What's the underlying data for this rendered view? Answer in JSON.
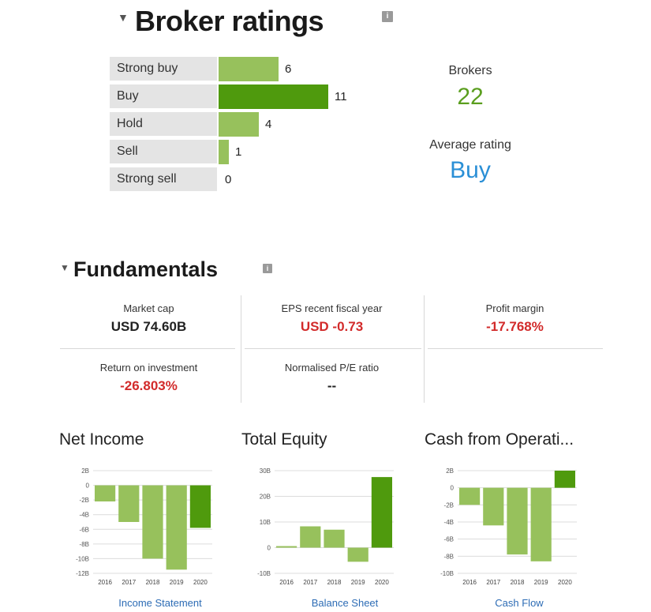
{
  "broker": {
    "title": "Broker ratings",
    "info": "i",
    "ratings": [
      {
        "label": "Strong buy",
        "count": 6
      },
      {
        "label": "Buy",
        "count": 11
      },
      {
        "label": "Hold",
        "count": 4
      },
      {
        "label": "Sell",
        "count": 1
      },
      {
        "label": "Strong sell",
        "count": 0
      }
    ],
    "brokers_label": "Brokers",
    "brokers_value": "22",
    "avg_label": "Average rating",
    "avg_value": "Buy"
  },
  "fundamentals": {
    "title": "Fundamentals",
    "info": "i",
    "cells": [
      {
        "label": "Market cap",
        "value": "USD 74.60B",
        "color": "#222222"
      },
      {
        "label": "EPS recent fiscal year",
        "value": "USD -0.73",
        "color": "#d22a2a"
      },
      {
        "label": "Profit margin",
        "value": "-17.768%",
        "color": "#d22a2a"
      },
      {
        "label": "Return on investment",
        "value": "-26.803%",
        "color": "#d22a2a"
      },
      {
        "label": "Normalised P/E ratio",
        "value": "--",
        "color": "#222222"
      }
    ]
  },
  "colors": {
    "bar_light": "#97c15c",
    "bar_dark": "#4f9a0d",
    "accent_green": "#5a9e1e",
    "accent_blue": "#2a8fd6",
    "negative": "#d22a2a"
  },
  "chart_data": [
    {
      "type": "bar",
      "title": "Net Income",
      "categories": [
        "2016",
        "2017",
        "2018",
        "2019",
        "2020"
      ],
      "values": [
        -2.2,
        -5.0,
        -10.0,
        -11.5,
        -5.8
      ],
      "unit": "B",
      "yticks": [
        "2B",
        "0",
        "-2B",
        "-4B",
        "-6B",
        "-8B",
        "-10B",
        "-12B"
      ],
      "ylim": [
        -12,
        2
      ],
      "highlight_last": true,
      "link": "Income Statement"
    },
    {
      "type": "bar",
      "title": "Total Equity",
      "categories": [
        "2016",
        "2017",
        "2018",
        "2019",
        "2020"
      ],
      "values": [
        0.6,
        8.3,
        7.0,
        -5.5,
        27.5
      ],
      "unit": "B",
      "yticks": [
        "30B",
        "20B",
        "10B",
        "0",
        "-10B"
      ],
      "ylim": [
        -10,
        30
      ],
      "highlight_last": true,
      "link": "Balance Sheet"
    },
    {
      "type": "bar",
      "title": "Cash from Operati...",
      "categories": [
        "2016",
        "2017",
        "2018",
        "2019",
        "2020"
      ],
      "values": [
        -2.0,
        -4.4,
        -7.8,
        -8.6,
        2.0
      ],
      "unit": "B",
      "yticks": [
        "2B",
        "0",
        "-2B",
        "-4B",
        "-6B",
        "-8B",
        "-10B"
      ],
      "ylim": [
        -10,
        2
      ],
      "highlight_last": true,
      "link": "Cash Flow"
    }
  ]
}
